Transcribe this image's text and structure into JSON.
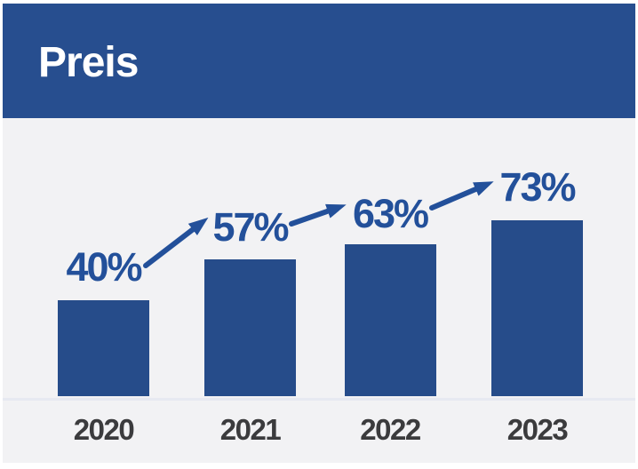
{
  "header": {
    "title": "Preis"
  },
  "chart_data": {
    "type": "bar",
    "title": "Preis",
    "categories": [
      "2020",
      "2021",
      "2022",
      "2023"
    ],
    "values": [
      40,
      57,
      63,
      73
    ],
    "value_labels": [
      "40%",
      "57%",
      "63%",
      "73%"
    ],
    "unit": "%",
    "ylim": [
      0,
      100
    ],
    "xlabel": "",
    "ylabel": "",
    "grid": false,
    "legend": false,
    "annotations": [
      {
        "type": "arrow",
        "from_label": "40%",
        "to_label": "57%",
        "direction": "up-right"
      },
      {
        "type": "arrow",
        "from_label": "57%",
        "to_label": "63%",
        "direction": "up-right"
      },
      {
        "type": "arrow",
        "from_label": "63%",
        "to_label": "73%",
        "direction": "up-right"
      }
    ]
  },
  "colors": {
    "page_bg": "#ffffff",
    "panel_bg": "#f2f2f4",
    "header_bg": "#274e8f",
    "title_text": "#ffffff",
    "bar": "#264c8a",
    "value_label": "#23509a",
    "arrow": "#23509a",
    "category_label": "#3b3b3d",
    "axis_line": "#e7e9f1"
  }
}
